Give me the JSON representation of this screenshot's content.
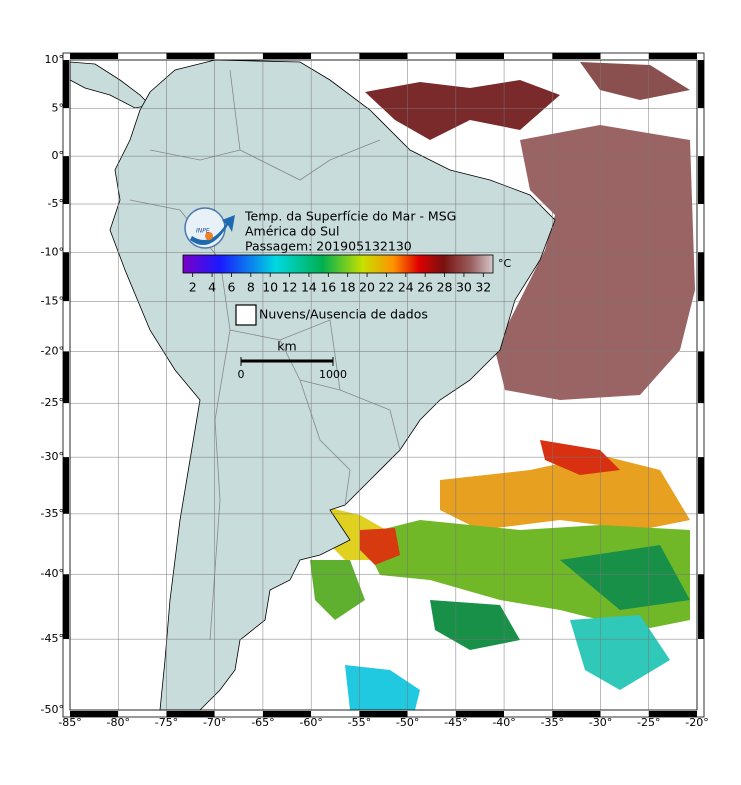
{
  "map": {
    "title_lines": [
      "Temp. da Superfície do Mar - MSG",
      "América do Sul",
      "Passagem: 201905132130"
    ],
    "logo_text": "INPE",
    "colorbar": {
      "lim": [
        1,
        33
      ],
      "ticks": [
        2,
        4,
        6,
        8,
        10,
        12,
        14,
        16,
        18,
        20,
        22,
        24,
        26,
        28,
        30,
        32
      ],
      "unit": "°C"
    },
    "legend": "Nuvens/Ausencia de dados",
    "scale": {
      "unit": "km",
      "lim": [
        0,
        1000
      ],
      "ticks": [
        0,
        1000
      ]
    },
    "lat_ticks": [
      {
        "value": 10,
        "label": "10°"
      },
      {
        "value": 5,
        "label": "5°"
      },
      {
        "value": 0,
        "label": "0°"
      },
      {
        "value": -5,
        "label": "-5°"
      },
      {
        "value": -10,
        "label": "-10°"
      },
      {
        "value": -15,
        "label": "-15°"
      },
      {
        "value": -20,
        "label": "-20°"
      },
      {
        "value": -25,
        "label": "-25°"
      },
      {
        "value": -30,
        "label": "-30°"
      },
      {
        "value": -35,
        "label": "-35°"
      },
      {
        "value": -40,
        "label": "-40°"
      },
      {
        "value": -45,
        "label": "-45°"
      },
      {
        "value": -50,
        "label": "-50°"
      }
    ],
    "lon_ticks": [
      {
        "value": -85,
        "label": "-85°"
      },
      {
        "value": -80,
        "label": "-80°"
      },
      {
        "value": -75,
        "label": "-75°"
      },
      {
        "value": -70,
        "label": "-70°"
      },
      {
        "value": -65,
        "label": "-65°"
      },
      {
        "value": -60,
        "label": "-60°"
      },
      {
        "value": -55,
        "label": "-55°"
      },
      {
        "value": -50,
        "label": "-50°"
      },
      {
        "value": -45,
        "label": "-45°"
      },
      {
        "value": -40,
        "label": "-40°"
      },
      {
        "value": -35,
        "label": "-35°"
      },
      {
        "value": -30,
        "label": "-30°"
      },
      {
        "value": -25,
        "label": "-25°"
      },
      {
        "value": -20,
        "label": "-20°"
      }
    ]
  }
}
